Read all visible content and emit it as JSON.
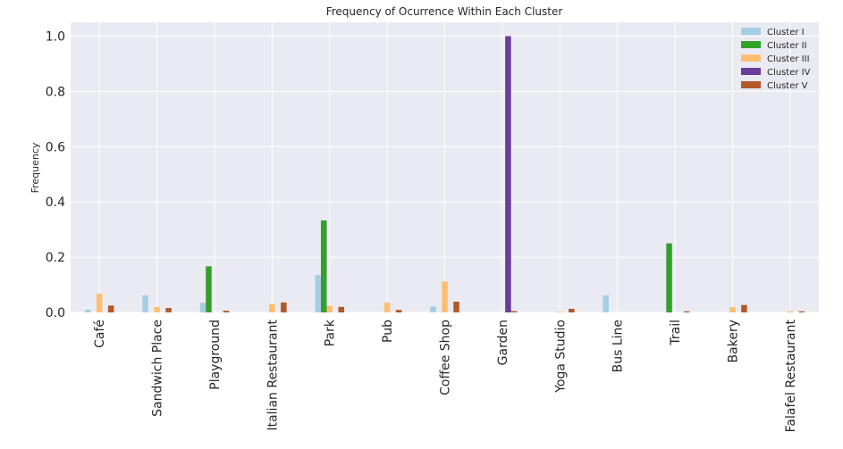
{
  "chart_data": {
    "type": "bar",
    "title": "Frequency of Ocurrence Within Each Cluster",
    "xlabel": "",
    "ylabel": "Frequency",
    "ylim": [
      0,
      1.05
    ],
    "yticks": [
      "0.0",
      "0.2",
      "0.4",
      "0.6",
      "0.8",
      "1.0"
    ],
    "grid": true,
    "legend_position": "top-right",
    "categories": [
      "Café",
      "Sandwich Place",
      "Playground",
      "Italian Restaurant",
      "Park",
      "Pub",
      "Coffee Shop",
      "Garden",
      "Yoga Studio",
      "Bus Line",
      "Trail",
      "Bakery",
      "Falafel Restaurant"
    ],
    "series": [
      {
        "name": "Cluster I",
        "color": "#a6cee3",
        "values": [
          0.01,
          0.062,
          0.035,
          0.0,
          0.135,
          0.0,
          0.022,
          0.0,
          0.0,
          0.062,
          0.0,
          0.0,
          0.0
        ]
      },
      {
        "name": "Cluster II",
        "color": "#33a02c",
        "values": [
          0.0,
          0.0,
          0.167,
          0.0,
          0.333,
          0.0,
          0.0,
          0.0,
          0.0,
          0.0,
          0.25,
          0.0,
          0.0
        ]
      },
      {
        "name": "Cluster III",
        "color": "#fdbf6f",
        "values": [
          0.068,
          0.02,
          0.0,
          0.03,
          0.024,
          0.035,
          0.112,
          0.0,
          0.003,
          0.0,
          0.0,
          0.019,
          0.004
        ]
      },
      {
        "name": "Cluster IV",
        "color": "#6a3d9a",
        "values": [
          0.0,
          0.0,
          0.0,
          0.0,
          0.0,
          0.0,
          0.0,
          1.0,
          0.0,
          0.0,
          0.0,
          0.0,
          0.0
        ]
      },
      {
        "name": "Cluster V",
        "color": "#b15928",
        "values": [
          0.025,
          0.016,
          0.006,
          0.036,
          0.02,
          0.009,
          0.039,
          0.005,
          0.013,
          0.0,
          0.004,
          0.027,
          0.004
        ]
      }
    ]
  }
}
